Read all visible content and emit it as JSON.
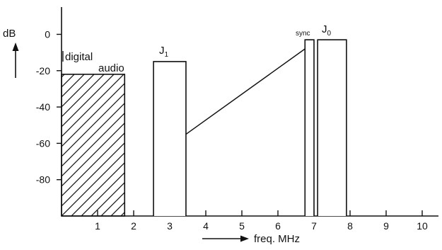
{
  "chart_data": {
    "type": "bar",
    "ylabel": "dB",
    "xlabel": "freq. MHz",
    "xlim": [
      0,
      10.5
    ],
    "ylim": [
      -100,
      15
    ],
    "x_ticks": [
      1,
      2,
      3,
      4,
      5,
      6,
      7,
      8,
      9,
      10
    ],
    "y_ticks": [
      0,
      -20,
      -40,
      -60,
      -80
    ],
    "grid": false,
    "bands": [
      {
        "label": "digital audio",
        "x_start": 0.0,
        "x_end": 1.75,
        "level": -22,
        "hatched": true
      },
      {
        "label": "J1",
        "x_start": 2.55,
        "x_end": 3.45,
        "level": -15,
        "hatched": false
      },
      {
        "label": "sync",
        "x_start": 6.75,
        "x_end": 7.0,
        "level": -3,
        "hatched": false
      },
      {
        "label": "J0",
        "x_start": 7.1,
        "x_end": 7.9,
        "level": -3,
        "hatched": false
      }
    ],
    "ramp": {
      "x_start": 3.45,
      "y_start": -55,
      "x_end": 6.75,
      "y_end": -8
    }
  },
  "labels": {
    "digital_prefix": "digital",
    "digital_suffix": "audio",
    "j1_main": "J",
    "j1_sub": "1",
    "sync": "sync",
    "j0_main": "J",
    "j0_sub": "0"
  }
}
